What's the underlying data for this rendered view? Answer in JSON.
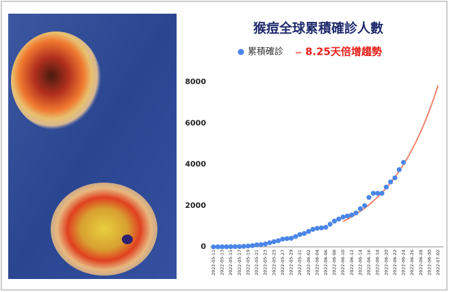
{
  "chart_data": {
    "type": "line",
    "title": "猴痘全球累積確診人數",
    "categories": [
      "2022-05-11",
      null,
      "2022-05-13",
      null,
      "2022-05-15",
      null,
      "2022-05-17",
      null,
      "2022-05-19",
      null,
      "2022-05-21",
      null,
      "2022-05-23",
      null,
      "2022-05-25",
      null,
      "2022-05-27",
      null,
      "2022-05-29",
      null,
      "2022-05-31",
      null,
      "2022-06-02",
      null,
      "2022-06-04",
      null,
      "2022-06-06",
      null,
      "2022-06-08",
      null,
      "2022-06-10",
      null,
      "2022-06-12",
      null,
      "2022-06-14",
      null,
      "2022-06-16",
      null,
      "2022-06-18",
      null,
      "2022-06-20",
      null,
      "2022-06-22",
      null,
      "2022-06-24",
      null,
      "2022-06-26",
      null,
      "2022-06-28",
      null,
      "2022-06-30",
      null,
      "2022-07-02"
    ],
    "series": [
      {
        "name": "累積確診",
        "color": "#4a86e8",
        "mode": "markers",
        "values": [
          1,
          2,
          3,
          5,
          8,
          12,
          15,
          25,
          40,
          60,
          100,
          110,
          140,
          200,
          250,
          300,
          380,
          400,
          420,
          500,
          600,
          650,
          750,
          850,
          900,
          920,
          950,
          1100,
          1250,
          1350,
          1450,
          1500,
          1550,
          1650,
          1850,
          2000,
          2400,
          2600,
          2600,
          2600,
          2900,
          3150,
          3350,
          3750,
          4100,
          null,
          null,
          null,
          null,
          null,
          null,
          null,
          null
        ]
      },
      {
        "name": "8.25天倍增趨勢",
        "color": "#f2826c",
        "mode": "line",
        "values": [
          null,
          null,
          null,
          null,
          null,
          null,
          null,
          null,
          null,
          null,
          null,
          null,
          null,
          null,
          null,
          null,
          null,
          null,
          null,
          null,
          null,
          null,
          null,
          null,
          null,
          null,
          null,
          null,
          null,
          null,
          1234,
          1342,
          1460,
          1587,
          1727,
          1878,
          2043,
          2222,
          2417,
          2628,
          2858,
          3109,
          3381,
          3678,
          4000,
          4351,
          4732,
          5147,
          5598,
          6088,
          6621,
          7201,
          7834
        ]
      }
    ],
    "ylim": [
      0,
      8000
    ],
    "yticks": [
      0,
      2000,
      4000,
      6000,
      8000
    ],
    "grid": false
  }
}
